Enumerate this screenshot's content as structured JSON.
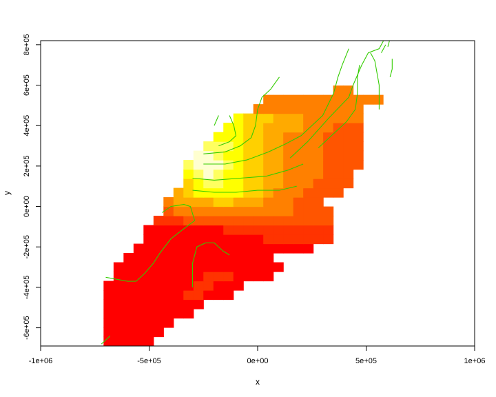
{
  "chart_data": {
    "type": "heatmap",
    "title": "",
    "xlabel": "x",
    "ylabel": "y",
    "xlim": [
      -1000000,
      1000000
    ],
    "ylim": [
      -690000,
      820000
    ],
    "xticks": [
      {
        "value": -1000000,
        "label": "-1e+06"
      },
      {
        "value": -500000,
        "label": "-5e+05"
      },
      {
        "value": 0,
        "label": "0e+00"
      },
      {
        "value": 500000,
        "label": "5e+05"
      },
      {
        "value": 1000000,
        "label": "1e+06"
      }
    ],
    "yticks": [
      {
        "value": -600000,
        "label": "-6e+05"
      },
      {
        "value": -400000,
        "label": "-4e+05"
      },
      {
        "value": -200000,
        "label": "-2e+05"
      },
      {
        "value": 0,
        "label": "0e+00"
      },
      {
        "value": 200000,
        "label": "2e+05"
      },
      {
        "value": 400000,
        "label": "4e+05"
      },
      {
        "value": 600000,
        "label": "6e+05"
      },
      {
        "value": 800000,
        "label": "8e+05"
      }
    ],
    "grid": false,
    "colormap": [
      "#ff0000",
      "#ff3300",
      "#ff5500",
      "#ff8000",
      "#ffaa00",
      "#ffd000",
      "#ffff00",
      "#ffff60",
      "#ffffd0"
    ],
    "contour_color": "#33cc00",
    "cell_size": 46000,
    "x0": -710000,
    "y0": -690000,
    "rows": [
      {
        "i": 0,
        "start": 0,
        "vals": [
          0,
          0,
          0,
          0,
          0
        ]
      },
      {
        "i": 1,
        "start": 0,
        "vals": [
          0,
          0,
          0,
          0,
          0,
          0
        ]
      },
      {
        "i": 2,
        "start": 0,
        "vals": [
          0,
          0,
          0,
          0,
          0,
          0,
          0
        ]
      },
      {
        "i": 3,
        "start": 0,
        "vals": [
          0,
          0,
          0,
          0,
          0,
          0,
          0,
          0,
          0
        ]
      },
      {
        "i": 4,
        "start": 0,
        "vals": [
          0,
          0,
          0,
          0,
          0,
          0,
          0,
          0,
          0,
          0
        ]
      },
      {
        "i": 5,
        "start": 0,
        "vals": [
          0,
          0,
          0,
          0,
          0,
          0,
          0,
          0,
          1,
          1,
          0,
          0,
          0
        ]
      },
      {
        "i": 6,
        "start": 0,
        "vals": [
          0,
          0,
          0,
          0,
          0,
          0,
          0,
          0,
          0,
          1,
          1,
          0,
          0,
          0
        ]
      },
      {
        "i": 7,
        "start": 1,
        "vals": [
          0,
          0,
          0,
          0,
          0,
          0,
          0,
          0,
          0,
          1,
          1,
          1,
          0,
          0,
          0,
          0
        ]
      },
      {
        "i": 8,
        "start": 1,
        "vals": [
          0,
          0,
          0,
          0,
          0,
          0,
          0,
          0,
          0,
          0,
          0,
          0,
          0,
          0,
          0,
          0,
          0
        ]
      },
      {
        "i": 9,
        "start": 2,
        "vals": [
          0,
          0,
          0,
          0,
          0,
          0,
          0,
          0,
          0,
          0,
          0,
          0,
          0,
          0,
          0
        ]
      },
      {
        "i": 10,
        "start": 3,
        "vals": [
          0,
          0,
          0,
          0,
          0,
          0,
          0,
          0,
          0,
          0,
          0,
          0,
          0,
          0,
          0,
          0,
          0,
          0
        ]
      },
      {
        "i": 11,
        "start": 4,
        "vals": [
          0,
          0,
          0,
          0,
          0,
          0,
          0,
          0,
          0,
          0,
          0,
          0,
          1,
          1,
          1,
          1,
          1,
          1,
          1
        ]
      },
      {
        "i": 12,
        "start": 4,
        "vals": [
          0,
          0,
          0,
          0,
          0,
          0,
          0,
          0,
          1,
          1,
          1,
          1,
          1,
          1,
          1,
          1,
          1,
          1,
          1
        ]
      },
      {
        "i": 13,
        "start": 5,
        "vals": [
          1,
          1,
          1,
          2,
          2,
          2,
          2,
          2,
          2,
          2,
          2,
          2,
          2,
          2,
          2,
          2,
          2,
          2
        ]
      },
      {
        "i": 14,
        "start": 6,
        "vals": [
          2,
          3,
          3,
          3,
          3,
          3,
          3,
          3,
          3,
          3,
          3,
          3,
          3,
          2,
          2,
          2,
          2
        ]
      },
      {
        "i": 15,
        "start": 6,
        "vals": [
          3,
          4,
          4,
          4,
          4,
          5,
          5,
          4,
          4,
          4,
          3,
          3,
          3,
          2,
          2,
          2
        ]
      },
      {
        "i": 16,
        "start": 7,
        "vals": [
          4,
          5,
          6,
          6,
          6,
          6,
          6,
          5,
          5,
          4,
          3,
          3,
          3,
          2,
          2,
          2,
          2
        ]
      },
      {
        "i": 17,
        "start": 8,
        "vals": [
          5,
          6,
          7,
          7,
          6,
          6,
          5,
          5,
          4,
          4,
          3,
          3,
          3,
          2,
          2,
          2,
          2
        ]
      },
      {
        "i": 18,
        "start": 8,
        "vals": [
          6,
          7,
          8,
          7,
          6,
          6,
          5,
          5,
          4,
          4,
          3,
          3,
          3,
          3,
          2,
          2,
          2
        ]
      },
      {
        "i": 19,
        "start": 8,
        "vals": [
          7,
          8,
          8,
          8,
          7,
          6,
          5,
          5,
          4,
          4,
          3,
          3,
          3,
          3,
          2,
          2,
          2,
          2
        ]
      },
      {
        "i": 20,
        "start": 9,
        "vals": [
          8,
          8,
          7,
          6,
          6,
          5,
          5,
          4,
          4,
          3,
          3,
          3,
          3,
          2,
          2,
          2,
          2
        ]
      },
      {
        "i": 21,
        "start": 10,
        "vals": [
          7,
          7,
          7,
          6,
          5,
          5,
          4,
          4,
          3,
          3,
          3,
          3,
          2,
          2,
          2,
          2
        ]
      },
      {
        "i": 22,
        "start": 11,
        "vals": [
          6,
          6,
          6,
          5,
          5,
          4,
          4,
          3,
          3,
          3,
          3,
          2,
          2,
          2,
          2
        ]
      },
      {
        "i": 23,
        "start": 12,
        "vals": [
          6,
          6,
          5,
          5,
          4,
          4,
          4,
          4,
          3,
          3,
          3,
          2,
          2,
          2
        ]
      },
      {
        "i": 24,
        "start": 13,
        "vals": [
          6,
          5,
          5,
          5,
          4,
          4,
          4,
          3,
          3,
          3,
          3,
          3,
          3
        ]
      },
      {
        "i": 25,
        "start": 15,
        "vals": [
          3,
          3,
          3,
          3,
          3,
          3,
          3,
          3,
          3,
          3,
          3
        ]
      },
      {
        "i": 26,
        "start": 16,
        "vals": [
          3,
          3,
          3,
          3,
          3,
          3,
          3,
          3,
          3,
          3,
          3,
          3
        ]
      },
      {
        "i": 27,
        "start": 23,
        "vals": [
          3,
          3
        ]
      }
    ],
    "contours": [
      [
        [
          -720000,
          -680000
        ],
        [
          -690000,
          -650000
        ],
        [
          -680000,
          -640000
        ]
      ],
      [
        [
          -700000,
          -350000
        ],
        [
          -600000,
          -370000
        ],
        [
          -560000,
          -370000
        ],
        [
          -520000,
          -330000
        ],
        [
          -480000,
          -280000
        ],
        [
          -450000,
          -230000
        ],
        [
          -400000,
          -160000
        ],
        [
          -340000,
          -110000
        ],
        [
          -290000,
          -70000
        ],
        [
          -310000,
          0
        ],
        [
          -340000,
          10000
        ],
        [
          -400000,
          0
        ],
        [
          -440000,
          -30000
        ]
      ],
      [
        [
          -300000,
          -400000
        ],
        [
          -300000,
          -280000
        ],
        [
          -280000,
          -200000
        ],
        [
          -240000,
          -180000
        ],
        [
          -200000,
          -180000
        ],
        [
          -160000,
          -220000
        ],
        [
          -130000,
          -240000
        ]
      ],
      [
        [
          -300000,
          80000
        ],
        [
          -200000,
          70000
        ],
        [
          -100000,
          70000
        ],
        [
          0,
          80000
        ],
        [
          100000,
          80000
        ],
        [
          180000,
          100000
        ]
      ],
      [
        [
          -300000,
          140000
        ],
        [
          -200000,
          130000
        ],
        [
          -80000,
          140000
        ],
        [
          40000,
          150000
        ],
        [
          140000,
          180000
        ],
        [
          210000,
          210000
        ]
      ],
      [
        [
          -250000,
          210000
        ],
        [
          -150000,
          210000
        ],
        [
          -50000,
          230000
        ],
        [
          50000,
          270000
        ],
        [
          130000,
          310000
        ],
        [
          200000,
          350000
        ],
        [
          300000,
          450000
        ],
        [
          350000,
          560000
        ],
        [
          370000,
          640000
        ],
        [
          390000,
          700000
        ],
        [
          420000,
          780000
        ]
      ],
      [
        [
          -250000,
          260000
        ],
        [
          -150000,
          270000
        ],
        [
          -80000,
          300000
        ],
        [
          -30000,
          340000
        ],
        [
          -10000,
          400000
        ],
        [
          0,
          480000
        ],
        [
          20000,
          540000
        ],
        [
          60000,
          580000
        ],
        [
          100000,
          640000
        ]
      ],
      [
        [
          -180000,
          300000
        ],
        [
          -130000,
          320000
        ],
        [
          -100000,
          350000
        ],
        [
          -110000,
          400000
        ],
        [
          -130000,
          450000
        ]
      ],
      [
        [
          -200000,
          400000
        ],
        [
          -180000,
          450000
        ]
      ],
      [
        [
          150000,
          240000
        ],
        [
          230000,
          320000
        ],
        [
          280000,
          380000
        ],
        [
          330000,
          440000
        ],
        [
          420000,
          540000
        ],
        [
          440000,
          600000
        ],
        [
          480000,
          700000
        ],
        [
          510000,
          760000
        ],
        [
          560000,
          780000
        ],
        [
          580000,
          820000
        ]
      ],
      [
        [
          280000,
          290000
        ],
        [
          330000,
          340000
        ],
        [
          410000,
          420000
        ],
        [
          450000,
          480000
        ],
        [
          460000,
          560000
        ],
        [
          460000,
          640000
        ],
        [
          470000,
          700000
        ]
      ],
      [
        [
          560000,
          480000
        ],
        [
          560000,
          600000
        ],
        [
          540000,
          720000
        ],
        [
          520000,
          760000
        ]
      ],
      [
        [
          610000,
          640000
        ],
        [
          620000,
          680000
        ],
        [
          620000,
          730000
        ]
      ],
      [
        [
          570000,
          760000
        ],
        [
          590000,
          800000
        ]
      ],
      [
        [
          600000,
          790000
        ],
        [
          610000,
          830000
        ]
      ]
    ]
  }
}
